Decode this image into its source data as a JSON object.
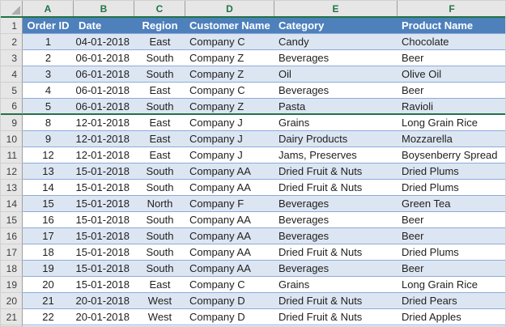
{
  "app": "excel-worksheet",
  "colors": {
    "header_fill": "#4E80BC",
    "header_text": "#FFFFFF",
    "banded_row_fill": "#DCE6F2",
    "plain_row_fill": "#FFFFFF",
    "table_border": "#8EAADB",
    "frame_background": "#E6E6E6",
    "selection_green": "#217346"
  },
  "sheet": {
    "column_letters": [
      "A",
      "B",
      "C",
      "D",
      "E",
      "F"
    ],
    "header_row_number": "1",
    "headers": [
      "Order ID",
      "Date",
      "Region",
      "Customer Name",
      "Category",
      "Product Name"
    ],
    "hidden_gap_after_row": "6",
    "rows": [
      {
        "n": "2",
        "cells": [
          "1",
          "04-01-2018",
          "East",
          "Company C",
          "Candy",
          "Chocolate"
        ]
      },
      {
        "n": "3",
        "cells": [
          "2",
          "06-01-2018",
          "South",
          "Company Z",
          "Beverages",
          "Beer"
        ]
      },
      {
        "n": "4",
        "cells": [
          "3",
          "06-01-2018",
          "South",
          "Company Z",
          "Oil",
          "Olive Oil"
        ]
      },
      {
        "n": "5",
        "cells": [
          "4",
          "06-01-2018",
          "East",
          "Company C",
          "Beverages",
          "Beer"
        ]
      },
      {
        "n": "6",
        "cells": [
          "5",
          "06-01-2018",
          "South",
          "Company Z",
          "Pasta",
          "Ravioli"
        ]
      },
      {
        "n": "9",
        "cells": [
          "8",
          "12-01-2018",
          "East",
          "Company J",
          "Grains",
          "Long Grain Rice"
        ]
      },
      {
        "n": "10",
        "cells": [
          "9",
          "12-01-2018",
          "East",
          "Company J",
          "Dairy Products",
          "Mozzarella"
        ]
      },
      {
        "n": "11",
        "cells": [
          "12",
          "12-01-2018",
          "East",
          "Company J",
          "Jams, Preserves",
          "Boysenberry Spread"
        ]
      },
      {
        "n": "12",
        "cells": [
          "13",
          "15-01-2018",
          "South",
          "Company AA",
          "Dried Fruit & Nuts",
          "Dried Plums"
        ]
      },
      {
        "n": "13",
        "cells": [
          "14",
          "15-01-2018",
          "South",
          "Company AA",
          "Dried Fruit & Nuts",
          "Dried Plums"
        ]
      },
      {
        "n": "14",
        "cells": [
          "15",
          "15-01-2018",
          "North",
          "Company F",
          "Beverages",
          "Green Tea"
        ]
      },
      {
        "n": "15",
        "cells": [
          "16",
          "15-01-2018",
          "South",
          "Company AA",
          "Beverages",
          "Beer"
        ]
      },
      {
        "n": "16",
        "cells": [
          "17",
          "15-01-2018",
          "South",
          "Company AA",
          "Beverages",
          "Beer"
        ]
      },
      {
        "n": "17",
        "cells": [
          "18",
          "15-01-2018",
          "South",
          "Company AA",
          "Dried Fruit & Nuts",
          "Dried Plums"
        ]
      },
      {
        "n": "18",
        "cells": [
          "19",
          "15-01-2018",
          "South",
          "Company AA",
          "Beverages",
          "Beer"
        ]
      },
      {
        "n": "19",
        "cells": [
          "20",
          "15-01-2018",
          "East",
          "Company C",
          "Grains",
          "Long Grain Rice"
        ]
      },
      {
        "n": "20",
        "cells": [
          "21",
          "20-01-2018",
          "West",
          "Company D",
          "Dried Fruit & Nuts",
          "Dried Pears"
        ]
      },
      {
        "n": "21",
        "cells": [
          "22",
          "20-01-2018",
          "West",
          "Company D",
          "Dried Fruit & Nuts",
          "Dried Apples"
        ]
      }
    ]
  }
}
